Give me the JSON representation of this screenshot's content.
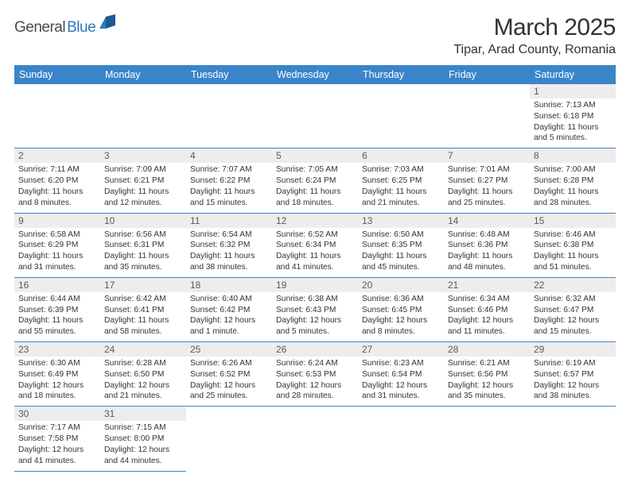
{
  "logo": {
    "text1": "General",
    "text2": "Blue"
  },
  "title": "March 2025",
  "location": "Tipar, Arad County, Romania",
  "dayHeaders": [
    "Sunday",
    "Monday",
    "Tuesday",
    "Wednesday",
    "Thursday",
    "Friday",
    "Saturday"
  ],
  "colors": {
    "headerBg": "#3a85c9",
    "headerText": "#ffffff",
    "border": "#3a85c9",
    "dayBg": "#ededed",
    "logoBlue": "#2b7bbf"
  },
  "weeks": [
    [
      null,
      null,
      null,
      null,
      null,
      null,
      {
        "n": "1",
        "sr": "Sunrise: 7:13 AM",
        "ss": "Sunset: 6:18 PM",
        "dl": "Daylight: 11 hours and 5 minutes."
      }
    ],
    [
      {
        "n": "2",
        "sr": "Sunrise: 7:11 AM",
        "ss": "Sunset: 6:20 PM",
        "dl": "Daylight: 11 hours and 8 minutes."
      },
      {
        "n": "3",
        "sr": "Sunrise: 7:09 AM",
        "ss": "Sunset: 6:21 PM",
        "dl": "Daylight: 11 hours and 12 minutes."
      },
      {
        "n": "4",
        "sr": "Sunrise: 7:07 AM",
        "ss": "Sunset: 6:22 PM",
        "dl": "Daylight: 11 hours and 15 minutes."
      },
      {
        "n": "5",
        "sr": "Sunrise: 7:05 AM",
        "ss": "Sunset: 6:24 PM",
        "dl": "Daylight: 11 hours and 18 minutes."
      },
      {
        "n": "6",
        "sr": "Sunrise: 7:03 AM",
        "ss": "Sunset: 6:25 PM",
        "dl": "Daylight: 11 hours and 21 minutes."
      },
      {
        "n": "7",
        "sr": "Sunrise: 7:01 AM",
        "ss": "Sunset: 6:27 PM",
        "dl": "Daylight: 11 hours and 25 minutes."
      },
      {
        "n": "8",
        "sr": "Sunrise: 7:00 AM",
        "ss": "Sunset: 6:28 PM",
        "dl": "Daylight: 11 hours and 28 minutes."
      }
    ],
    [
      {
        "n": "9",
        "sr": "Sunrise: 6:58 AM",
        "ss": "Sunset: 6:29 PM",
        "dl": "Daylight: 11 hours and 31 minutes."
      },
      {
        "n": "10",
        "sr": "Sunrise: 6:56 AM",
        "ss": "Sunset: 6:31 PM",
        "dl": "Daylight: 11 hours and 35 minutes."
      },
      {
        "n": "11",
        "sr": "Sunrise: 6:54 AM",
        "ss": "Sunset: 6:32 PM",
        "dl": "Daylight: 11 hours and 38 minutes."
      },
      {
        "n": "12",
        "sr": "Sunrise: 6:52 AM",
        "ss": "Sunset: 6:34 PM",
        "dl": "Daylight: 11 hours and 41 minutes."
      },
      {
        "n": "13",
        "sr": "Sunrise: 6:50 AM",
        "ss": "Sunset: 6:35 PM",
        "dl": "Daylight: 11 hours and 45 minutes."
      },
      {
        "n": "14",
        "sr": "Sunrise: 6:48 AM",
        "ss": "Sunset: 6:36 PM",
        "dl": "Daylight: 11 hours and 48 minutes."
      },
      {
        "n": "15",
        "sr": "Sunrise: 6:46 AM",
        "ss": "Sunset: 6:38 PM",
        "dl": "Daylight: 11 hours and 51 minutes."
      }
    ],
    [
      {
        "n": "16",
        "sr": "Sunrise: 6:44 AM",
        "ss": "Sunset: 6:39 PM",
        "dl": "Daylight: 11 hours and 55 minutes."
      },
      {
        "n": "17",
        "sr": "Sunrise: 6:42 AM",
        "ss": "Sunset: 6:41 PM",
        "dl": "Daylight: 11 hours and 58 minutes."
      },
      {
        "n": "18",
        "sr": "Sunrise: 6:40 AM",
        "ss": "Sunset: 6:42 PM",
        "dl": "Daylight: 12 hours and 1 minute."
      },
      {
        "n": "19",
        "sr": "Sunrise: 6:38 AM",
        "ss": "Sunset: 6:43 PM",
        "dl": "Daylight: 12 hours and 5 minutes."
      },
      {
        "n": "20",
        "sr": "Sunrise: 6:36 AM",
        "ss": "Sunset: 6:45 PM",
        "dl": "Daylight: 12 hours and 8 minutes."
      },
      {
        "n": "21",
        "sr": "Sunrise: 6:34 AM",
        "ss": "Sunset: 6:46 PM",
        "dl": "Daylight: 12 hours and 11 minutes."
      },
      {
        "n": "22",
        "sr": "Sunrise: 6:32 AM",
        "ss": "Sunset: 6:47 PM",
        "dl": "Daylight: 12 hours and 15 minutes."
      }
    ],
    [
      {
        "n": "23",
        "sr": "Sunrise: 6:30 AM",
        "ss": "Sunset: 6:49 PM",
        "dl": "Daylight: 12 hours and 18 minutes."
      },
      {
        "n": "24",
        "sr": "Sunrise: 6:28 AM",
        "ss": "Sunset: 6:50 PM",
        "dl": "Daylight: 12 hours and 21 minutes."
      },
      {
        "n": "25",
        "sr": "Sunrise: 6:26 AM",
        "ss": "Sunset: 6:52 PM",
        "dl": "Daylight: 12 hours and 25 minutes."
      },
      {
        "n": "26",
        "sr": "Sunrise: 6:24 AM",
        "ss": "Sunset: 6:53 PM",
        "dl": "Daylight: 12 hours and 28 minutes."
      },
      {
        "n": "27",
        "sr": "Sunrise: 6:23 AM",
        "ss": "Sunset: 6:54 PM",
        "dl": "Daylight: 12 hours and 31 minutes."
      },
      {
        "n": "28",
        "sr": "Sunrise: 6:21 AM",
        "ss": "Sunset: 6:56 PM",
        "dl": "Daylight: 12 hours and 35 minutes."
      },
      {
        "n": "29",
        "sr": "Sunrise: 6:19 AM",
        "ss": "Sunset: 6:57 PM",
        "dl": "Daylight: 12 hours and 38 minutes."
      }
    ],
    [
      {
        "n": "30",
        "sr": "Sunrise: 7:17 AM",
        "ss": "Sunset: 7:58 PM",
        "dl": "Daylight: 12 hours and 41 minutes."
      },
      {
        "n": "31",
        "sr": "Sunrise: 7:15 AM",
        "ss": "Sunset: 8:00 PM",
        "dl": "Daylight: 12 hours and 44 minutes."
      },
      null,
      null,
      null,
      null,
      null
    ]
  ]
}
